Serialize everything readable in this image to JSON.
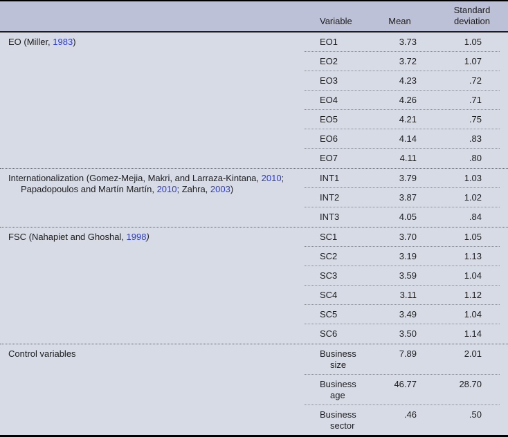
{
  "theme": {
    "body_bg": "#d7dbe5",
    "header_bg": "#bdc1d8",
    "text_color": "#1c1c1c",
    "citation_link_color": "#2a3ad2"
  },
  "table": {
    "header": {
      "variable": "Variable",
      "mean": "Mean",
      "sd": "Standard deviation"
    },
    "sections": [
      {
        "construct": [
          {
            "t": "EO (Miller, "
          },
          {
            "t": "1983",
            "link": true
          },
          {
            "t": ")"
          }
        ],
        "rows": [
          {
            "variable": "EO1",
            "mean": "3.73",
            "sd": "1.05"
          },
          {
            "variable": "EO2",
            "mean": "3.72",
            "sd": "1.07"
          },
          {
            "variable": "EO3",
            "mean": "4.23",
            "sd": ".72"
          },
          {
            "variable": "EO4",
            "mean": "4.26",
            "sd": ".71"
          },
          {
            "variable": "EO5",
            "mean": "4.21",
            "sd": ".75"
          },
          {
            "variable": "EO6",
            "mean": "4.14",
            "sd": ".83"
          },
          {
            "variable": "EO7",
            "mean": "4.11",
            "sd": ".80"
          }
        ]
      },
      {
        "construct": [
          {
            "t": "Internationalization (Gomez-Mejia, Makri, and Larraza-Kintana, "
          },
          {
            "t": "2010",
            "link": true
          },
          {
            "t": "; Papadopoulos and Martín Martín, "
          },
          {
            "t": "2010",
            "link": true
          },
          {
            "t": "; Zahra, "
          },
          {
            "t": "2003",
            "link": true
          },
          {
            "t": ")"
          }
        ],
        "rows": [
          {
            "variable": "INT1",
            "mean": "3.79",
            "sd": "1.03"
          },
          {
            "variable": "INT2",
            "mean": "3.87",
            "sd": "1.02"
          },
          {
            "variable": "INT3",
            "mean": "4.05",
            "sd": ".84"
          }
        ]
      },
      {
        "construct": [
          {
            "t": "FSC (Nahapiet and Ghoshal, "
          },
          {
            "t": "1998",
            "link": true
          },
          {
            "t": ")",
            "italic": true
          }
        ],
        "rows": [
          {
            "variable": "SC1",
            "mean": "3.70",
            "sd": "1.05"
          },
          {
            "variable": "SC2",
            "mean": "3.19",
            "sd": "1.13"
          },
          {
            "variable": "SC3",
            "mean": "3.59",
            "sd": "1.04"
          },
          {
            "variable": "SC4",
            "mean": "3.11",
            "sd": "1.12"
          },
          {
            "variable": "SC5",
            "mean": "3.49",
            "sd": "1.04"
          },
          {
            "variable": "SC6",
            "mean": "3.50",
            "sd": "1.14"
          }
        ]
      },
      {
        "construct": [
          {
            "t": "Control variables"
          }
        ],
        "rows": [
          {
            "variable": "Business size",
            "mean": "7.89",
            "sd": "2.01"
          },
          {
            "variable": "Business age",
            "mean": "46.77",
            "sd": "28.70"
          },
          {
            "variable": "Business sector",
            "mean": ".46",
            "sd": ".50"
          }
        ]
      }
    ]
  }
}
